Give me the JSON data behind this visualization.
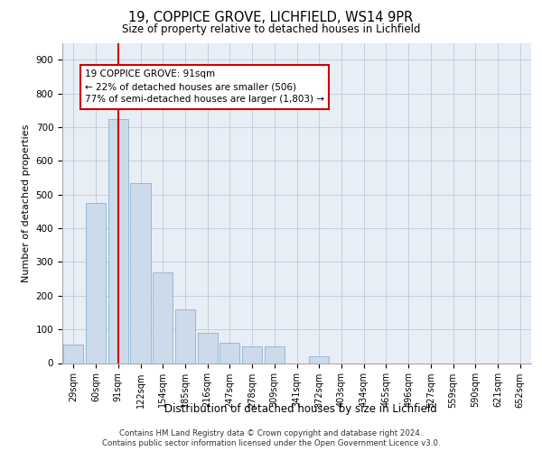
{
  "title1": "19, COPPICE GROVE, LICHFIELD, WS14 9PR",
  "title2": "Size of property relative to detached houses in Lichfield",
  "xlabel": "Distribution of detached houses by size in Lichfield",
  "ylabel": "Number of detached properties",
  "categories": [
    "29sqm",
    "60sqm",
    "91sqm",
    "122sqm",
    "154sqm",
    "185sqm",
    "216sqm",
    "247sqm",
    "278sqm",
    "309sqm",
    "341sqm",
    "372sqm",
    "403sqm",
    "434sqm",
    "465sqm",
    "496sqm",
    "527sqm",
    "559sqm",
    "590sqm",
    "621sqm",
    "652sqm"
  ],
  "values": [
    55,
    475,
    725,
    535,
    270,
    160,
    90,
    60,
    50,
    50,
    0,
    20,
    0,
    0,
    0,
    0,
    0,
    0,
    0,
    0,
    0
  ],
  "bar_color": "#ccdaea",
  "bar_edge_color": "#7aaac8",
  "red_line_index": 2,
  "annotation_text": "19 COPPICE GROVE: 91sqm\n← 22% of detached houses are smaller (506)\n77% of semi-detached houses are larger (1,803) →",
  "annotation_box_color": "#ffffff",
  "annotation_box_edge": "#cc0000",
  "red_line_color": "#cc0000",
  "ylim": [
    0,
    950
  ],
  "yticks": [
    0,
    100,
    200,
    300,
    400,
    500,
    600,
    700,
    800,
    900
  ],
  "grid_color": "#c0c8d8",
  "background_color": "#e8eef6",
  "footer1": "Contains HM Land Registry data © Crown copyright and database right 2024.",
  "footer2": "Contains public sector information licensed under the Open Government Licence v3.0."
}
